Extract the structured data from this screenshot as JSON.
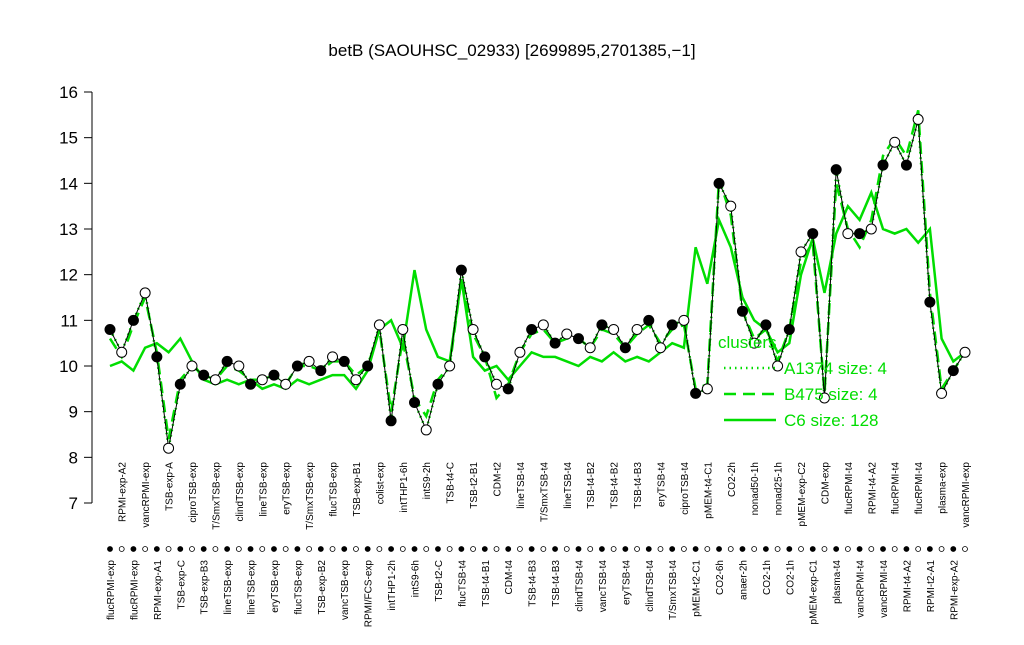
{
  "chart_data": {
    "type": "line",
    "title": "betB (SAOUHSC_02933) [2699895,2701385,−1]",
    "categories": [
      "flucRPMI-exp",
      "RPMI-exp-A2",
      "flucRPMI-exp",
      "vancRPMI-exp",
      "RPMI-exp-A1",
      "TSB-exp-A",
      "TSB-exp-C",
      "ciproTSB-exp",
      "TSB-exp-B3",
      "T/SmxTSB-exp",
      "lineTSB-exp",
      "clindTSB-exp",
      "lineTSB-exp",
      "lineTSB-exp",
      "eryTSB-exp",
      "eryTSB-exp",
      "flucTSB-exp",
      "T/SmxTSB-exp",
      "TSB-exp-B2",
      "flucTSB-exp",
      "vancTSB-exp",
      "TSB-exp-B1",
      "RPMI/FCS-exp",
      "colist-exp",
      "intTHP1-2h",
      "intTHP1-6h",
      "intS9-6h",
      "intS9-2h",
      "TSB-t2-C",
      "TSB-t4-C",
      "flucTSB-t4",
      "TSB-t2-B1",
      "TSB-t4-B1",
      "CDM-t2",
      "CDM-t4",
      "lineTSB-t4",
      "TSB-t4-B3",
      "T/SmxTSB-t4",
      "TSB-t4-B3",
      "lineTSB-t4",
      "clindTSB-t4",
      "TSB-t4-B2",
      "vancTSB-t4",
      "TSB-t4-B2",
      "eryTSB-t4",
      "TSB-t4-B3",
      "clindTSB-t4",
      "eryTSB-t4",
      "T/SmxTSB-t4",
      "ciproTSB-t4",
      "pMEM-t2-C1",
      "pMEM-t4-C1",
      "CO2-6h",
      "CO2-2h",
      "anaer-2h",
      "nonad50-1h",
      "CO2-1h",
      "nonad25-1h",
      "CO2-1h",
      "pMEM-exp-C2",
      "pMEM-exp-C1",
      "CDM-exp",
      "plasma-t4",
      "flucRPMI-t4",
      "vancRPMI-t4",
      "RPMI-t4-A2",
      "vancRPMI-t4",
      "flucRPMI-t4",
      "RPMI-t4-A2",
      "flucRPMI-t4",
      "RPMI-t2-A1",
      "plasma-exp",
      "RPMI-exp-A2",
      "vancRPMI-exp"
    ],
    "values": [
      10.8,
      10.3,
      11.0,
      11.6,
      10.2,
      8.2,
      9.6,
      10.0,
      9.8,
      9.7,
      10.1,
      10.0,
      9.6,
      9.7,
      9.8,
      9.6,
      10.0,
      10.1,
      9.9,
      10.2,
      10.1,
      9.7,
      10.0,
      10.9,
      8.8,
      10.8,
      9.2,
      8.6,
      9.6,
      10.0,
      12.1,
      10.8,
      10.2,
      9.6,
      9.5,
      10.3,
      10.8,
      10.9,
      10.5,
      10.7,
      10.6,
      10.4,
      10.9,
      10.8,
      10.4,
      10.8,
      11.0,
      10.4,
      10.9,
      11.0,
      9.4,
      9.5,
      14.0,
      13.5,
      11.2,
      10.5,
      10.9,
      10.0,
      10.8,
      12.5,
      12.9,
      9.3,
      14.3,
      12.9,
      12.9,
      13.0,
      14.4,
      14.9,
      14.4,
      15.4,
      11.4,
      9.4,
      9.9,
      10.3
    ],
    "series": [
      {
        "name": "A1374 size: 4",
        "color": "#00dd00",
        "style": "dotted",
        "values": [
          10.8,
          10.3,
          11.0,
          11.6,
          10.2,
          8.2,
          9.6,
          10.0,
          9.8,
          9.7,
          10.1,
          10.0,
          9.6,
          9.7,
          9.8,
          9.6,
          10.0,
          10.1,
          9.9,
          10.2,
          10.1,
          9.7,
          10.0,
          10.9,
          8.8,
          10.8,
          9.2,
          8.6,
          9.6,
          10.0,
          12.1,
          10.8,
          10.2,
          9.6,
          9.5,
          10.3,
          10.8,
          10.9,
          10.5,
          10.7,
          10.6,
          10.4,
          10.9,
          10.8,
          10.4,
          10.8,
          11.0,
          10.4,
          10.9,
          11.0,
          9.4,
          9.5,
          14.0,
          13.5,
          11.2,
          10.5,
          10.9,
          10.0,
          10.8,
          12.5,
          12.9,
          9.3,
          14.3,
          12.9,
          12.9,
          13.0,
          14.4,
          14.9,
          14.4,
          15.4,
          11.4,
          9.4,
          9.9,
          10.3
        ]
      },
      {
        "name": "B475 size: 4",
        "color": "#00dd00",
        "style": "dashed",
        "values": [
          10.6,
          10.2,
          10.9,
          11.5,
          10.3,
          8.4,
          9.7,
          10.0,
          9.8,
          9.7,
          10.0,
          9.9,
          9.7,
          9.7,
          9.8,
          9.6,
          10.0,
          10.0,
          9.9,
          10.1,
          10.1,
          9.8,
          10.0,
          10.8,
          9.0,
          10.6,
          9.3,
          8.9,
          9.7,
          10.0,
          11.9,
          10.7,
          10.2,
          9.3,
          9.6,
          10.3,
          10.7,
          10.8,
          10.5,
          10.6,
          10.6,
          10.4,
          10.8,
          10.7,
          10.4,
          10.7,
          10.9,
          10.5,
          10.8,
          10.9,
          9.5,
          9.6,
          14.1,
          13.3,
          11.2,
          10.6,
          10.8,
          10.1,
          10.8,
          12.3,
          12.7,
          9.4,
          14.0,
          13.0,
          12.6,
          13.2,
          14.6,
          15.0,
          14.6,
          15.6,
          11.6,
          9.5,
          9.9,
          10.3
        ]
      },
      {
        "name": "C6 size: 128",
        "color": "#00dd00",
        "style": "solid",
        "values": [
          10.0,
          10.1,
          9.9,
          10.4,
          10.5,
          10.3,
          10.6,
          10.1,
          9.7,
          9.6,
          9.7,
          9.6,
          9.7,
          9.5,
          9.6,
          9.5,
          9.7,
          9.6,
          9.7,
          9.8,
          9.8,
          9.5,
          9.9,
          10.8,
          11.0,
          10.4,
          12.1,
          10.8,
          10.2,
          10.1,
          11.9,
          10.2,
          9.9,
          10.0,
          9.7,
          10.0,
          10.3,
          10.2,
          10.2,
          10.1,
          10.0,
          10.2,
          10.1,
          10.3,
          10.1,
          10.2,
          10.1,
          10.3,
          10.5,
          10.4,
          12.6,
          11.8,
          13.2,
          12.6,
          11.5,
          11.0,
          10.8,
          10.3,
          10.5,
          12.0,
          12.8,
          11.6,
          12.9,
          13.5,
          13.2,
          13.8,
          13.0,
          12.9,
          13.0,
          12.7,
          13.0,
          10.6,
          10.1,
          10.3
        ]
      }
    ],
    "legend_title": "clusters",
    "legend": "right",
    "ylim": [
      7,
      16
    ],
    "yticks": [
      7,
      8,
      9,
      10,
      11,
      12,
      13,
      14,
      15,
      16
    ]
  }
}
